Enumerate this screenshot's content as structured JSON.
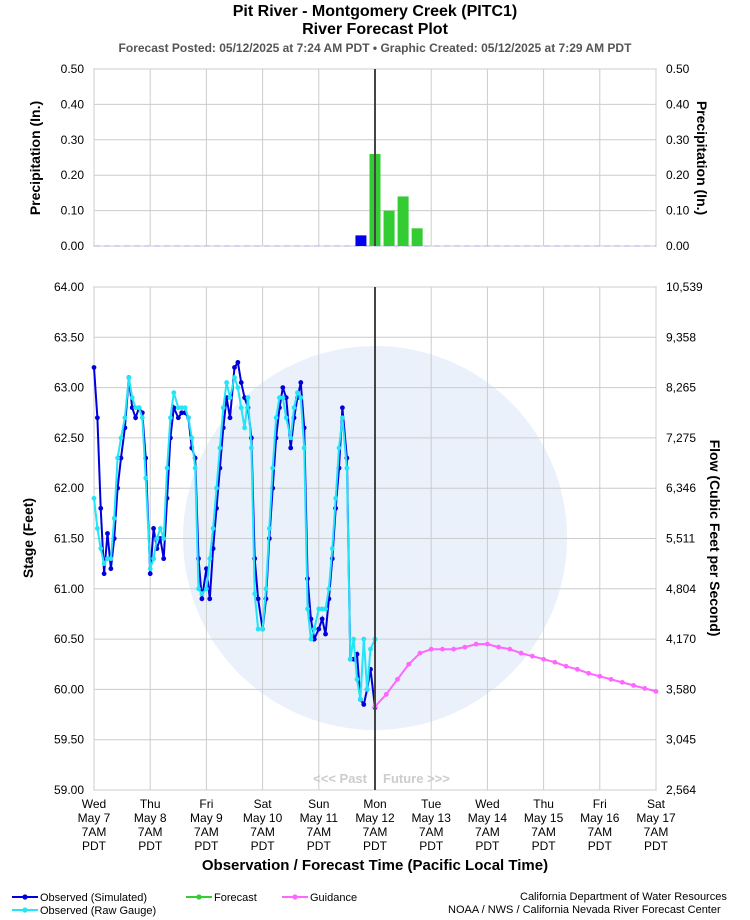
{
  "header": {
    "title": "Pit River - Montgomery Creek (PITC1)",
    "subtitle": "River Forecast Plot",
    "posted_label": "Forecast Posted: 05/12/2025 at 7:24 AM PDT",
    "separator": "•",
    "created_label": "Graphic Created: 05/12/2025 at 7:29 AM PDT"
  },
  "chart_data": [
    {
      "type": "bar",
      "panel": "precipitation",
      "ylabel_left": "Precipitation (In.)",
      "ylabel_right": "Precipitation (In.)",
      "ylim": [
        0,
        0.5
      ],
      "yticks": [
        "0.00",
        "0.10",
        "0.20",
        "0.30",
        "0.40",
        "0.50"
      ],
      "grid": true,
      "observed_color": "#0000ee",
      "forecast_color": "#33cc33",
      "observed": [
        {
          "t": "05/12 01:00",
          "value": 0.03
        }
      ],
      "forecast": [
        {
          "t": "05/12 07:00",
          "value": 0.26
        },
        {
          "t": "05/12 13:00",
          "value": 0.1
        },
        {
          "t": "05/12 19:00",
          "value": 0.14
        },
        {
          "t": "05/13 01:00",
          "value": 0.05
        }
      ]
    },
    {
      "type": "line",
      "panel": "stage",
      "ylabel_left": "Stage (Feet)",
      "ylabel_right": "Flow (Cubic Feet per Second)",
      "xlabel": "Observation / Forecast Time (Pacific Local Time)",
      "ylim": [
        59.0,
        64.0
      ],
      "yticks_left": [
        "59.00",
        "59.50",
        "60.00",
        "60.50",
        "61.00",
        "61.50",
        "62.00",
        "62.50",
        "63.00",
        "63.50",
        "64.00"
      ],
      "yticks_right": [
        "2,564",
        "3,045",
        "3,580",
        "4,170",
        "4,804",
        "5,511",
        "6,346",
        "7,275",
        "8,265",
        "9,358",
        "10,539"
      ],
      "xticks": [
        {
          "day": "Wed",
          "date": "May 7",
          "time": "7AM",
          "tz": "PDT"
        },
        {
          "day": "Thu",
          "date": "May 8",
          "time": "7AM",
          "tz": "PDT"
        },
        {
          "day": "Fri",
          "date": "May 9",
          "time": "7AM",
          "tz": "PDT"
        },
        {
          "day": "Sat",
          "date": "May 10",
          "time": "7AM",
          "tz": "PDT"
        },
        {
          "day": "Sun",
          "date": "May 11",
          "time": "7AM",
          "tz": "PDT"
        },
        {
          "day": "Mon",
          "date": "May 12",
          "time": "7AM",
          "tz": "PDT"
        },
        {
          "day": "Tue",
          "date": "May 13",
          "time": "7AM",
          "tz": "PDT"
        },
        {
          "day": "Wed",
          "date": "May 14",
          "time": "7AM",
          "tz": "PDT"
        },
        {
          "day": "Thu",
          "date": "May 15",
          "time": "7AM",
          "tz": "PDT"
        },
        {
          "day": "Fri",
          "date": "May 16",
          "time": "7AM",
          "tz": "PDT"
        },
        {
          "day": "Sat",
          "date": "May 17",
          "time": "7AM",
          "tz": "PDT"
        }
      ],
      "now_marker": "05/12 07:00",
      "past_label": "<<< Past",
      "future_label": "Future >>>",
      "grid": true,
      "x_units": "days after Wed May 7 7AM PDT",
      "series": [
        {
          "name": "Observed (Simulated)",
          "color": "#0000dd",
          "x": [
            0,
            0.06,
            0.12,
            0.18,
            0.24,
            0.3,
            0.36,
            0.42,
            0.48,
            0.55,
            0.62,
            0.68,
            0.74,
            0.8,
            0.86,
            0.92,
            1.0,
            1.06,
            1.12,
            1.18,
            1.24,
            1.3,
            1.36,
            1.42,
            1.5,
            1.56,
            1.62,
            1.68,
            1.74,
            1.8,
            1.86,
            1.92,
            2.0,
            2.06,
            2.12,
            2.18,
            2.24,
            2.3,
            2.36,
            2.42,
            2.5,
            2.56,
            2.62,
            2.68,
            2.74,
            2.8,
            2.86,
            2.92,
            3.0,
            3.06,
            3.12,
            3.18,
            3.24,
            3.3,
            3.36,
            3.42,
            3.5,
            3.56,
            3.62,
            3.68,
            3.74,
            3.8,
            3.86,
            3.92,
            4.0,
            4.06,
            4.12,
            4.18,
            4.24,
            4.3,
            4.36,
            4.42,
            4.5,
            4.56,
            4.62,
            4.68,
            4.74,
            4.8,
            4.86,
            4.92,
            5.0
          ],
          "y": [
            63.2,
            62.7,
            61.8,
            61.15,
            61.55,
            61.2,
            61.5,
            62.0,
            62.3,
            62.6,
            63.1,
            62.8,
            62.7,
            62.8,
            62.75,
            62.3,
            61.15,
            61.6,
            61.4,
            61.5,
            61.3,
            61.9,
            62.5,
            62.8,
            62.7,
            62.75,
            62.75,
            62.7,
            62.4,
            62.3,
            61.3,
            60.9,
            61.2,
            60.9,
            61.4,
            61.8,
            62.2,
            62.6,
            62.9,
            62.7,
            63.2,
            63.25,
            63.05,
            62.9,
            62.8,
            62.5,
            61.3,
            60.9,
            60.6,
            60.9,
            61.5,
            62.0,
            62.5,
            62.8,
            63.0,
            62.9,
            62.4,
            62.7,
            62.9,
            63.05,
            62.6,
            61.1,
            60.7,
            60.5,
            60.6,
            60.7,
            60.55,
            60.9,
            61.3,
            61.8,
            62.2,
            62.8,
            62.3,
            60.3,
            60.3,
            60.35,
            59.9,
            59.85,
            60.0,
            60.2,
            59.82
          ]
        },
        {
          "name": "Observed (Raw Gauge)",
          "color": "#22e5f5",
          "x": [
            0,
            0.06,
            0.12,
            0.18,
            0.24,
            0.3,
            0.36,
            0.42,
            0.48,
            0.55,
            0.62,
            0.68,
            0.74,
            0.8,
            0.86,
            0.92,
            1.0,
            1.06,
            1.12,
            1.18,
            1.24,
            1.3,
            1.36,
            1.42,
            1.5,
            1.56,
            1.62,
            1.68,
            1.74,
            1.8,
            1.86,
            1.92,
            2.0,
            2.06,
            2.12,
            2.18,
            2.24,
            2.3,
            2.36,
            2.42,
            2.5,
            2.56,
            2.62,
            2.68,
            2.74,
            2.8,
            2.86,
            2.92,
            3.0,
            3.06,
            3.12,
            3.18,
            3.24,
            3.3,
            3.36,
            3.42,
            3.5,
            3.56,
            3.62,
            3.68,
            3.74,
            3.8,
            3.86,
            3.92,
            4.0,
            4.06,
            4.12,
            4.18,
            4.24,
            4.3,
            4.36,
            4.42,
            4.5,
            4.56,
            4.62,
            4.68,
            4.74,
            4.8,
            4.86,
            4.92,
            5.0
          ],
          "y": [
            61.9,
            61.6,
            61.4,
            61.25,
            61.3,
            61.3,
            61.7,
            62.3,
            62.5,
            62.7,
            63.1,
            62.9,
            62.8,
            62.8,
            62.7,
            62.1,
            61.2,
            61.3,
            61.5,
            61.6,
            61.5,
            62.2,
            62.7,
            62.95,
            62.8,
            62.8,
            62.8,
            62.7,
            62.5,
            62.2,
            61.0,
            60.95,
            61.0,
            61.3,
            61.6,
            62.0,
            62.4,
            62.8,
            63.05,
            62.9,
            63.1,
            63.0,
            62.8,
            62.6,
            62.9,
            62.4,
            60.95,
            60.6,
            60.6,
            61.0,
            61.6,
            62.2,
            62.7,
            62.9,
            62.9,
            62.7,
            62.5,
            62.8,
            62.95,
            62.9,
            62.4,
            60.8,
            60.5,
            60.6,
            60.8,
            60.8,
            60.8,
            61.0,
            61.4,
            61.9,
            62.4,
            62.7,
            62.2,
            60.3,
            60.5,
            60.1,
            59.9,
            60.5,
            60.0,
            60.4,
            60.5
          ]
        },
        {
          "name": "Forecast",
          "color": "#33cc33",
          "x": [],
          "y": []
        },
        {
          "name": "Guidance",
          "color": "#ff66ff",
          "x": [
            5.0,
            5.2,
            5.4,
            5.6,
            5.8,
            6.0,
            6.2,
            6.4,
            6.6,
            6.8,
            7.0,
            7.2,
            7.4,
            7.6,
            7.8,
            8.0,
            8.2,
            8.4,
            8.6,
            8.8,
            9.0,
            9.2,
            9.4,
            9.6,
            9.8,
            10.0
          ],
          "y": [
            59.83,
            59.95,
            60.1,
            60.25,
            60.36,
            60.4,
            60.4,
            60.4,
            60.42,
            60.45,
            60.45,
            60.42,
            60.4,
            60.36,
            60.33,
            60.3,
            60.27,
            60.23,
            60.2,
            60.16,
            60.13,
            60.1,
            60.07,
            60.04,
            60.01,
            59.98
          ]
        }
      ]
    }
  ],
  "legend": {
    "observed_sim": "Observed (Simulated)",
    "observed_raw": "Observed (Raw Gauge)",
    "forecast": "Forecast",
    "guidance": "Guidance"
  },
  "credits": {
    "line1": "California Department of Water Resources",
    "line2": "NOAA / NWS / California Nevada River Forecast Center"
  }
}
